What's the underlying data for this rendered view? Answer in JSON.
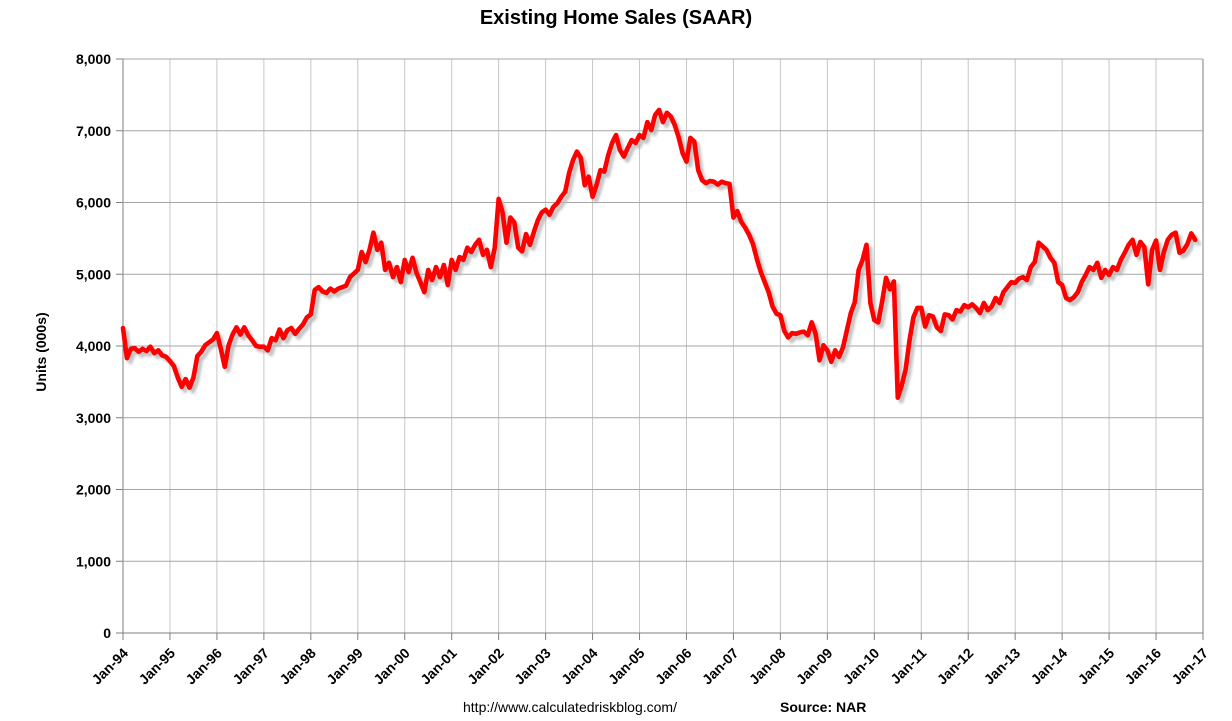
{
  "title": "Existing Home Sales (SAAR)",
  "footer": {
    "url": "http://www.calculatedriskblog.com/",
    "source_label": "Source:",
    "source_value": "NAR"
  },
  "colors": {
    "line": "#fe0000",
    "shadow": "#b5b5b5",
    "grid_horizontal": "#a6a6a6",
    "grid_vertical": "#c6c6c6",
    "axis": "#7f7f7f",
    "text": "#000000",
    "background": "#ffffff"
  },
  "chart_data": {
    "type": "line",
    "title": "Existing Home Sales (SAAR)",
    "xlabel": "",
    "ylabel": "Units (000s)",
    "ylim": [
      0,
      8000
    ],
    "grid": true,
    "legend_position": "none",
    "y_ticks": [
      "0",
      "1,000",
      "2,000",
      "3,000",
      "4,000",
      "5,000",
      "6,000",
      "7,000",
      "8,000"
    ],
    "x_ticks": [
      "Jan-94",
      "Jan-95",
      "Jan-96",
      "Jan-97",
      "Jan-98",
      "Jan-99",
      "Jan-00",
      "Jan-01",
      "Jan-02",
      "Jan-03",
      "Jan-04",
      "Jan-05",
      "Jan-06",
      "Jan-07",
      "Jan-08",
      "Jan-09",
      "Jan-10",
      "Jan-11",
      "Jan-12",
      "Jan-13",
      "Jan-14",
      "Jan-15",
      "Jan-16",
      "Jan-17"
    ],
    "series": [
      {
        "name": "Existing Home Sales",
        "frequency": "monthly",
        "start": "Jan-1994",
        "end": "Nov-2016",
        "values": [
          4250,
          3830,
          3960,
          3970,
          3920,
          3960,
          3930,
          3990,
          3900,
          3940,
          3870,
          3850,
          3790,
          3720,
          3560,
          3430,
          3540,
          3420,
          3560,
          3860,
          3920,
          4010,
          4050,
          4090,
          4180,
          3960,
          3710,
          4010,
          4160,
          4260,
          4160,
          4260,
          4150,
          4080,
          4000,
          3990,
          3990,
          3940,
          4110,
          4080,
          4230,
          4110,
          4220,
          4250,
          4170,
          4240,
          4300,
          4400,
          4440,
          4780,
          4820,
          4760,
          4740,
          4800,
          4760,
          4800,
          4820,
          4840,
          4960,
          5010,
          5060,
          5310,
          5170,
          5340,
          5580,
          5340,
          5440,
          5060,
          5160,
          4960,
          5100,
          4890,
          5200,
          5030,
          5230,
          5020,
          4890,
          4750,
          5060,
          4920,
          5100,
          4960,
          5130,
          4850,
          5200,
          5060,
          5240,
          5200,
          5370,
          5310,
          5410,
          5480,
          5270,
          5340,
          5100,
          5370,
          6050,
          5860,
          5440,
          5790,
          5720,
          5370,
          5320,
          5560,
          5410,
          5590,
          5750,
          5860,
          5900,
          5830,
          5940,
          5990,
          6080,
          6150,
          6410,
          6590,
          6710,
          6620,
          6240,
          6360,
          6080,
          6240,
          6450,
          6430,
          6660,
          6830,
          6940,
          6730,
          6640,
          6760,
          6870,
          6830,
          6940,
          6900,
          7120,
          7010,
          7220,
          7290,
          7120,
          7250,
          7200,
          7080,
          6910,
          6690,
          6570,
          6900,
          6850,
          6450,
          6310,
          6270,
          6300,
          6290,
          6250,
          6290,
          6270,
          6260,
          5790,
          5880,
          5730,
          5650,
          5550,
          5420,
          5210,
          5030,
          4890,
          4750,
          4550,
          4450,
          4430,
          4210,
          4120,
          4180,
          4170,
          4190,
          4200,
          4150,
          4330,
          4170,
          3800,
          4010,
          3940,
          3780,
          3940,
          3850,
          3980,
          4220,
          4460,
          4610,
          5060,
          5200,
          5410,
          4600,
          4360,
          4330,
          4620,
          4950,
          4790,
          4900,
          3280,
          3450,
          3670,
          4080,
          4400,
          4530,
          4530,
          4270,
          4430,
          4410,
          4260,
          4210,
          4440,
          4430,
          4370,
          4500,
          4480,
          4570,
          4540,
          4580,
          4530,
          4460,
          4600,
          4500,
          4550,
          4670,
          4600,
          4750,
          4820,
          4890,
          4880,
          4940,
          4960,
          4920,
          5100,
          5170,
          5440,
          5390,
          5340,
          5230,
          5160,
          4890,
          4850,
          4670,
          4640,
          4680,
          4750,
          4890,
          4990,
          5100,
          5060,
          5160,
          4950,
          5060,
          4990,
          5100,
          5060,
          5200,
          5300,
          5410,
          5480,
          5270,
          5450,
          5380,
          4860,
          5340,
          5470,
          5060,
          5310,
          5480,
          5550,
          5580,
          5300,
          5330,
          5420,
          5570,
          5480
        ]
      }
    ]
  }
}
